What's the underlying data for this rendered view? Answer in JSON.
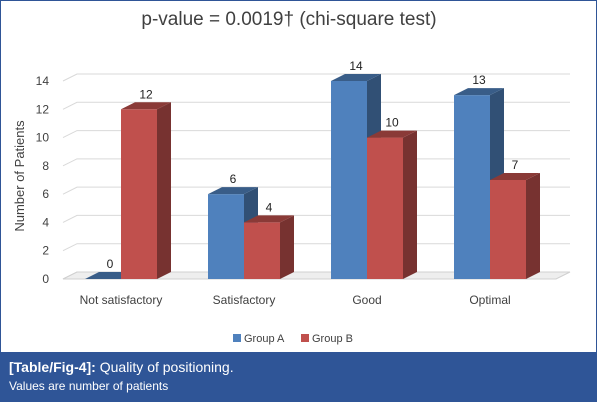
{
  "chart_data": {
    "type": "bar",
    "title": "p-value =  0.0019† (chi-square test)",
    "xlabel": "",
    "ylabel": "Number of Patients",
    "categories": [
      "Not satisfactory",
      "Satisfactory",
      "Good",
      "Optimal"
    ],
    "series": [
      {
        "name": "Group A",
        "values": [
          0,
          6,
          14,
          13
        ],
        "color": "#4f81bd"
      },
      {
        "name": "Group B",
        "values": [
          12,
          4,
          10,
          7
        ],
        "color": "#c0504d"
      }
    ],
    "ylim": [
      0,
      14
    ],
    "yticks": [
      0,
      2,
      4,
      6,
      8,
      10,
      12,
      14
    ],
    "grid": true,
    "legend_position": "bottom"
  },
  "caption": {
    "label": "[Table/Fig-4]:",
    "title": " Quality of positioning.",
    "note": "Values are number of patients"
  }
}
